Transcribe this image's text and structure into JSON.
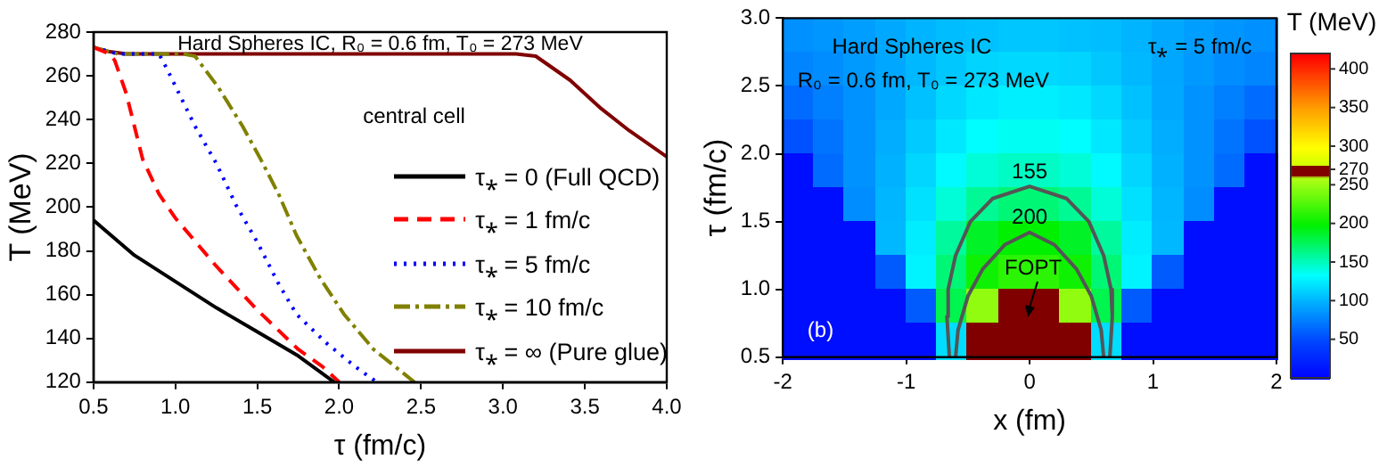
{
  "chart_data": [
    {
      "type": "line",
      "title": "Hard Spheres IC, R₀ = 0.6 fm, T₀ = 273 MeV",
      "xlabel": "τ (fm/c)",
      "ylabel": "T (MeV)",
      "xlim": [
        0.5,
        4
      ],
      "xticks": [
        0.5,
        {
          "value": 1,
          "label": "1.0"
        },
        1.5,
        {
          "value": 2,
          "label": "2.0"
        },
        2.5,
        {
          "value": 3,
          "label": "3.0"
        },
        3.5,
        {
          "value": 4,
          "label": "4.0"
        }
      ],
      "ylim": [
        120,
        280
      ],
      "yticks": [
        120,
        140,
        160,
        180,
        200,
        220,
        240,
        260,
        280
      ],
      "legend": "right",
      "annotations": [
        "central cell"
      ],
      "series": [
        {
          "name": "τ⁎ = 0 (Full QCD)",
          "color": "#000000",
          "line_style": "solid",
          "x": [
            0.5,
            0.75,
            1,
            1.25,
            1.5,
            1.75,
            1.97
          ],
          "values": [
            194,
            178,
            166,
            154,
            143,
            132,
            120
          ]
        },
        {
          "name": "τ⁎ = 1 fm/c",
          "color": "#ff0000",
          "line_style": "dashed",
          "x": [
            0.5,
            0.6,
            0.63,
            0.7,
            0.8,
            0.9,
            1,
            1.25,
            1.5,
            1.75,
            1.9,
            2
          ],
          "values": [
            273,
            270,
            267,
            252,
            222,
            206,
            195,
            173,
            153,
            135,
            127,
            120
          ]
        },
        {
          "name": "τ⁎ = 5 fm/c",
          "color": "#0000ff",
          "line_style": "dotted",
          "x": [
            0.5,
            0.65,
            0.9,
            0.95,
            1.12,
            1.25,
            1.37,
            1.5,
            1.63,
            1.74,
            1.92,
            2.1,
            2.23
          ],
          "values": [
            273,
            270,
            270,
            263,
            237,
            220,
            201,
            184,
            165,
            151,
            138,
            127,
            120
          ]
        },
        {
          "name": "τ⁎ = 10 fm/c",
          "color": "#808000",
          "line_style": "dashdot",
          "x": [
            0.5,
            0.65,
            1.05,
            1.12,
            1.26,
            1.41,
            1.52,
            1.63,
            1.74,
            1.88,
            2.03,
            2.21,
            2.46
          ],
          "values": [
            273,
            270,
            270,
            269,
            255,
            237,
            222,
            206,
            187,
            168,
            151,
            135,
            120
          ]
        },
        {
          "name": "τ⁎ = ∞ (Pure glue)",
          "color": "#800000",
          "line_style": "solid",
          "x": [
            0.5,
            0.6,
            0.7,
            3.08,
            3.2,
            3.41,
            3.6,
            3.77,
            4
          ],
          "values": [
            273,
            271,
            270,
            270,
            269,
            258,
            245,
            235,
            223
          ]
        }
      ]
    },
    {
      "type": "heatmap",
      "xlabel": "x (fm)",
      "ylabel": "τ (fm/c)",
      "clabel": "T (MeV)",
      "xlim": [
        -2,
        2
      ],
      "xticks": [
        -2,
        -1,
        0,
        1,
        2
      ],
      "ylim": [
        0.5,
        3
      ],
      "yticks": [
        0.5,
        {
          "value": 1,
          "label": "1.0"
        },
        1.5,
        {
          "value": 2,
          "label": "2.0"
        },
        2.5,
        {
          "value": 3,
          "label": "3.0"
        }
      ],
      "clim": [
        0,
        420
      ],
      "cticks": [
        50,
        100,
        150,
        200,
        250,
        270,
        300,
        350,
        400
      ],
      "x": [
        -1.875,
        -1.625,
        -1.375,
        -1.125,
        -0.875,
        -0.625,
        -0.375,
        -0.125,
        0.125,
        0.375,
        0.625,
        0.875,
        1.125,
        1.375,
        1.625,
        1.875
      ],
      "y": [
        2.875,
        2.625,
        2.375,
        2.125,
        1.875,
        1.625,
        1.375,
        1.125,
        0.875,
        0.625
      ],
      "cells": [
        [
          85,
          88,
          92,
          97,
          102,
          106,
          108,
          110,
          110,
          108,
          106,
          102,
          97,
          92,
          88,
          85
        ],
        [
          80,
          84,
          90,
          96,
          104,
          111,
          116,
          118,
          118,
          116,
          111,
          104,
          96,
          90,
          84,
          80
        ],
        [
          68,
          77,
          86,
          97,
          108,
          118,
          125,
          128,
          128,
          125,
          118,
          108,
          97,
          86,
          77,
          68
        ],
        [
          55,
          72,
          86,
          99,
          112,
          125,
          134,
          138,
          138,
          134,
          125,
          112,
          99,
          86,
          72,
          55
        ],
        [
          10,
          68,
          86,
          101,
          117,
          133,
          145,
          150,
          150,
          145,
          133,
          117,
          101,
          86,
          68,
          10
        ],
        [
          10,
          10,
          84,
          103,
          122,
          145,
          162,
          170,
          170,
          162,
          145,
          122,
          103,
          84,
          10,
          10
        ],
        [
          10,
          10,
          10,
          104,
          127,
          160,
          190,
          200,
          200,
          190,
          160,
          127,
          104,
          10,
          10,
          10
        ],
        [
          10,
          10,
          10,
          60,
          130,
          170,
          205,
          215,
          215,
          205,
          170,
          130,
          60,
          10,
          10,
          10
        ],
        [
          10,
          10,
          10,
          10,
          60,
          180,
          250,
          270,
          270,
          250,
          180,
          60,
          10,
          10,
          10,
          10
        ],
        [
          10,
          10,
          10,
          10,
          10,
          120,
          270,
          270,
          270,
          270,
          120,
          10,
          10,
          10,
          10,
          10
        ]
      ],
      "series": [
        {
          "type": "line",
          "name": "155",
          "color": "#555555",
          "x": [
            -0.65,
            -0.67,
            -0.66,
            -0.6,
            -0.48,
            -0.3,
            0,
            0.3,
            0.48,
            0.6,
            0.66,
            0.67,
            0.65
          ],
          "values": [
            0.5,
            0.8,
            1,
            1.25,
            1.5,
            1.67,
            1.76,
            1.67,
            1.5,
            1.25,
            1,
            0.8,
            0.5
          ]
        },
        {
          "type": "line",
          "name": "200",
          "color": "#555555",
          "x": [
            -0.6,
            -0.58,
            -0.5,
            -0.38,
            -0.2,
            0,
            0.2,
            0.38,
            0.5,
            0.58,
            0.6
          ],
          "values": [
            0.5,
            0.7,
            0.95,
            1.15,
            1.33,
            1.42,
            1.33,
            1.15,
            0.95,
            0.7,
            0.5
          ]
        }
      ],
      "annotations": [
        "Hard Spheres IC",
        "R₀ = 0.6 fm, T₀ = 273 MeV",
        "τ⁎ = 5 fm/c",
        "(b)",
        "FOPT"
      ]
    }
  ]
}
